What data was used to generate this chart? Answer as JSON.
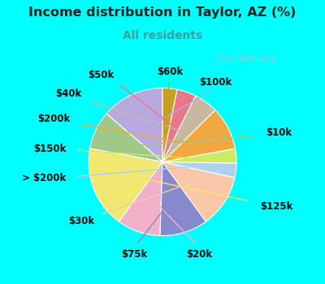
{
  "title": "Income distribution in Taylor, AZ (%)",
  "subtitle": "All residents",
  "bg_cyan": "#00FFFF",
  "bg_chart": "#e8f5ef",
  "labels": [
    "$100k",
    "$10k",
    "$125k",
    "$20k",
    "$75k",
    "$30k",
    "> $200k",
    "$150k",
    "$200k",
    "$40k",
    "$50k",
    "$60k"
  ],
  "values": [
    13,
    8,
    17,
    9,
    10,
    11,
    3,
    3,
    9,
    5,
    4,
    3
  ],
  "colors": [
    "#b8a8e0",
    "#a0c888",
    "#f0e870",
    "#f0b0c8",
    "#8888cc",
    "#fac8a8",
    "#b0d0f0",
    "#ccec60",
    "#f0a840",
    "#c8b8a0",
    "#e87888",
    "#c8a020"
  ],
  "title_fontsize": 11.5,
  "subtitle_fontsize": 10,
  "label_fontsize": 8.5,
  "subtitle_color": "#40a0a0",
  "title_color": "#222222",
  "label_color": "#111111",
  "watermark_color": "#b0c8c8",
  "watermark_text": "City-Data.com"
}
